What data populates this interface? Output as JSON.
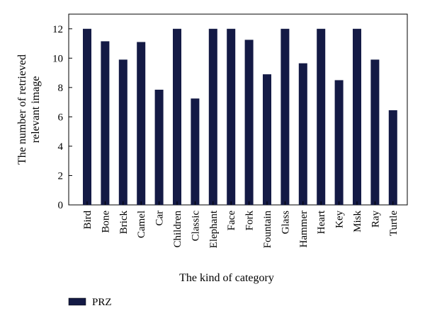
{
  "chart_data": {
    "type": "bar",
    "xlabel": "The kind of category",
    "ylabel_lines": [
      "The number of retrieved",
      "relevant image"
    ],
    "ylim": [
      0,
      13
    ],
    "yticks": [
      0,
      2,
      4,
      6,
      8,
      10,
      12
    ],
    "grid": false,
    "legend_position": "bottom-left",
    "categories": [
      "Bird",
      "Bone",
      "Brick",
      "Camel",
      "Car",
      "Children",
      "Classic",
      "Elephant",
      "Face",
      "Fork",
      "Fountain",
      "Glass",
      "Hammer",
      "Heart",
      "Key",
      "Misk",
      "Ray",
      "Turtle"
    ],
    "series": [
      {
        "name": "PRZ",
        "color": "#141a45",
        "values": [
          12,
          11.15,
          9.9,
          11.1,
          7.85,
          12,
          7.25,
          12,
          12,
          11.25,
          8.9,
          12,
          9.65,
          12,
          8.5,
          12,
          9.9,
          6.45
        ]
      }
    ]
  }
}
